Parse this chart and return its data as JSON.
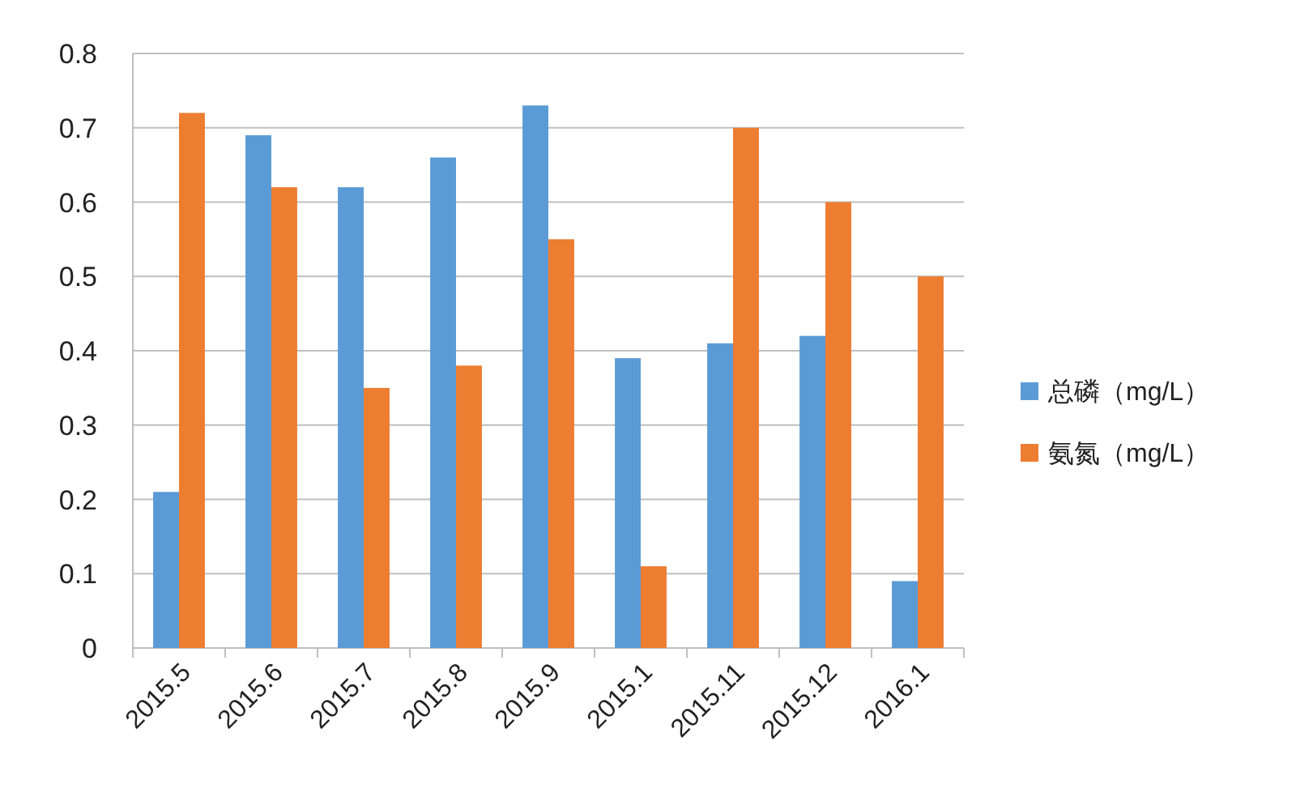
{
  "chart_data": {
    "type": "bar",
    "categories": [
      "2015.5",
      "2015.6",
      "2015.7",
      "2015.8",
      "2015.9",
      "2015.1",
      "2015.11",
      "2015.12",
      "2016.1"
    ],
    "series": [
      {
        "name": "总磷（mg/L）",
        "color": "#5b9bd5",
        "values": [
          0.21,
          0.69,
          0.62,
          0.66,
          0.73,
          0.39,
          0.41,
          0.42,
          0.09
        ]
      },
      {
        "name": "氨氮（mg/L）",
        "color": "#ed7d31",
        "values": [
          0.72,
          0.62,
          0.35,
          0.38,
          0.55,
          0.11,
          0.7,
          0.6,
          0.5
        ]
      }
    ],
    "ylim": [
      0,
      0.8
    ],
    "yticks": [
      0,
      0.1,
      0.2,
      0.3,
      0.4,
      0.5,
      0.6,
      0.7,
      0.8
    ],
    "grid": "y",
    "legend": "right"
  }
}
